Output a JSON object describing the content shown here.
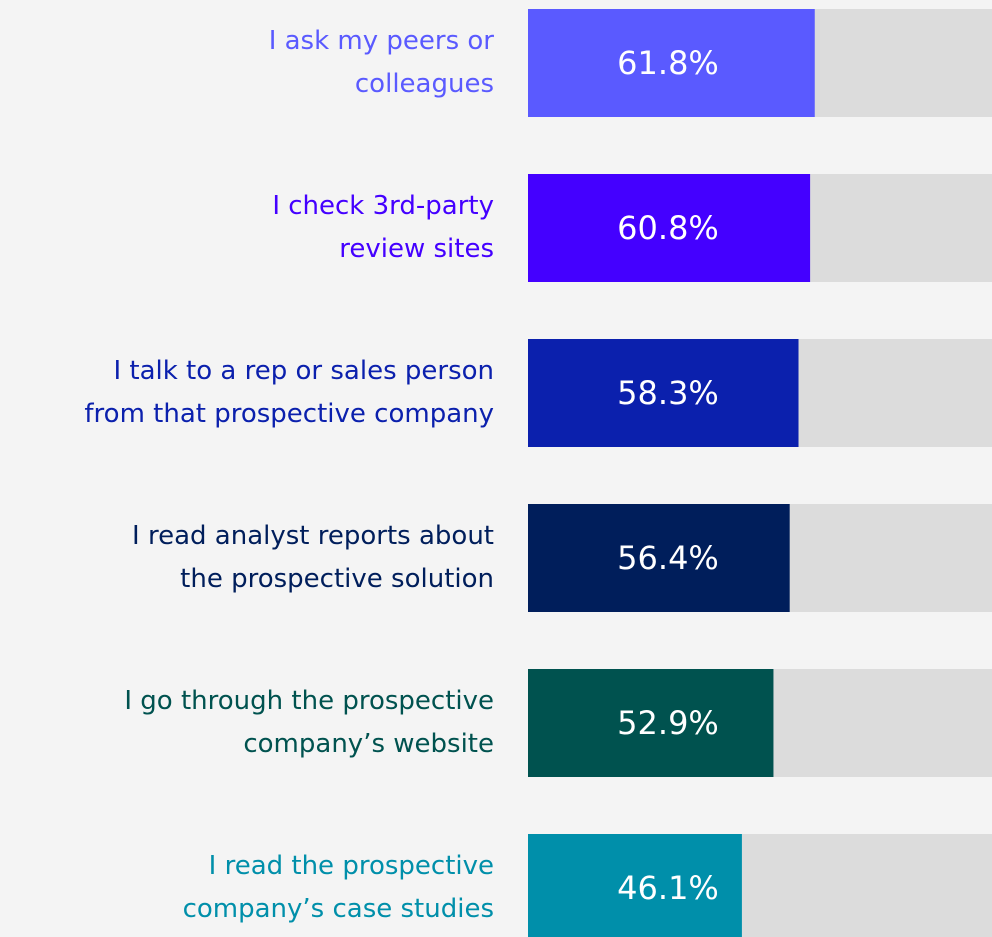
{
  "chart_data": {
    "type": "bar",
    "orientation": "horizontal",
    "categories": [
      [
        "I ask my peers or",
        "colleagues"
      ],
      [
        "I check 3rd-party",
        "review sites"
      ],
      [
        "I talk to a rep or sales person",
        "from that prospective company"
      ],
      [
        "I read analyst reports about",
        "the prospective solution"
      ],
      [
        "I go through the prospective",
        "company’s website"
      ],
      [
        "I read the prospective",
        "company’s case studies"
      ]
    ],
    "values": [
      61.8,
      60.8,
      58.3,
      56.4,
      52.9,
      46.1
    ],
    "value_labels": [
      "61.8%",
      "60.8%",
      "58.3%",
      "56.4%",
      "52.9%",
      "46.1%"
    ],
    "colors": [
      "#5a5aff",
      "#4400ff",
      "#0b20ad",
      "#001e5b",
      "#00524f",
      "#008faa"
    ],
    "xlim": [
      0,
      100
    ]
  }
}
